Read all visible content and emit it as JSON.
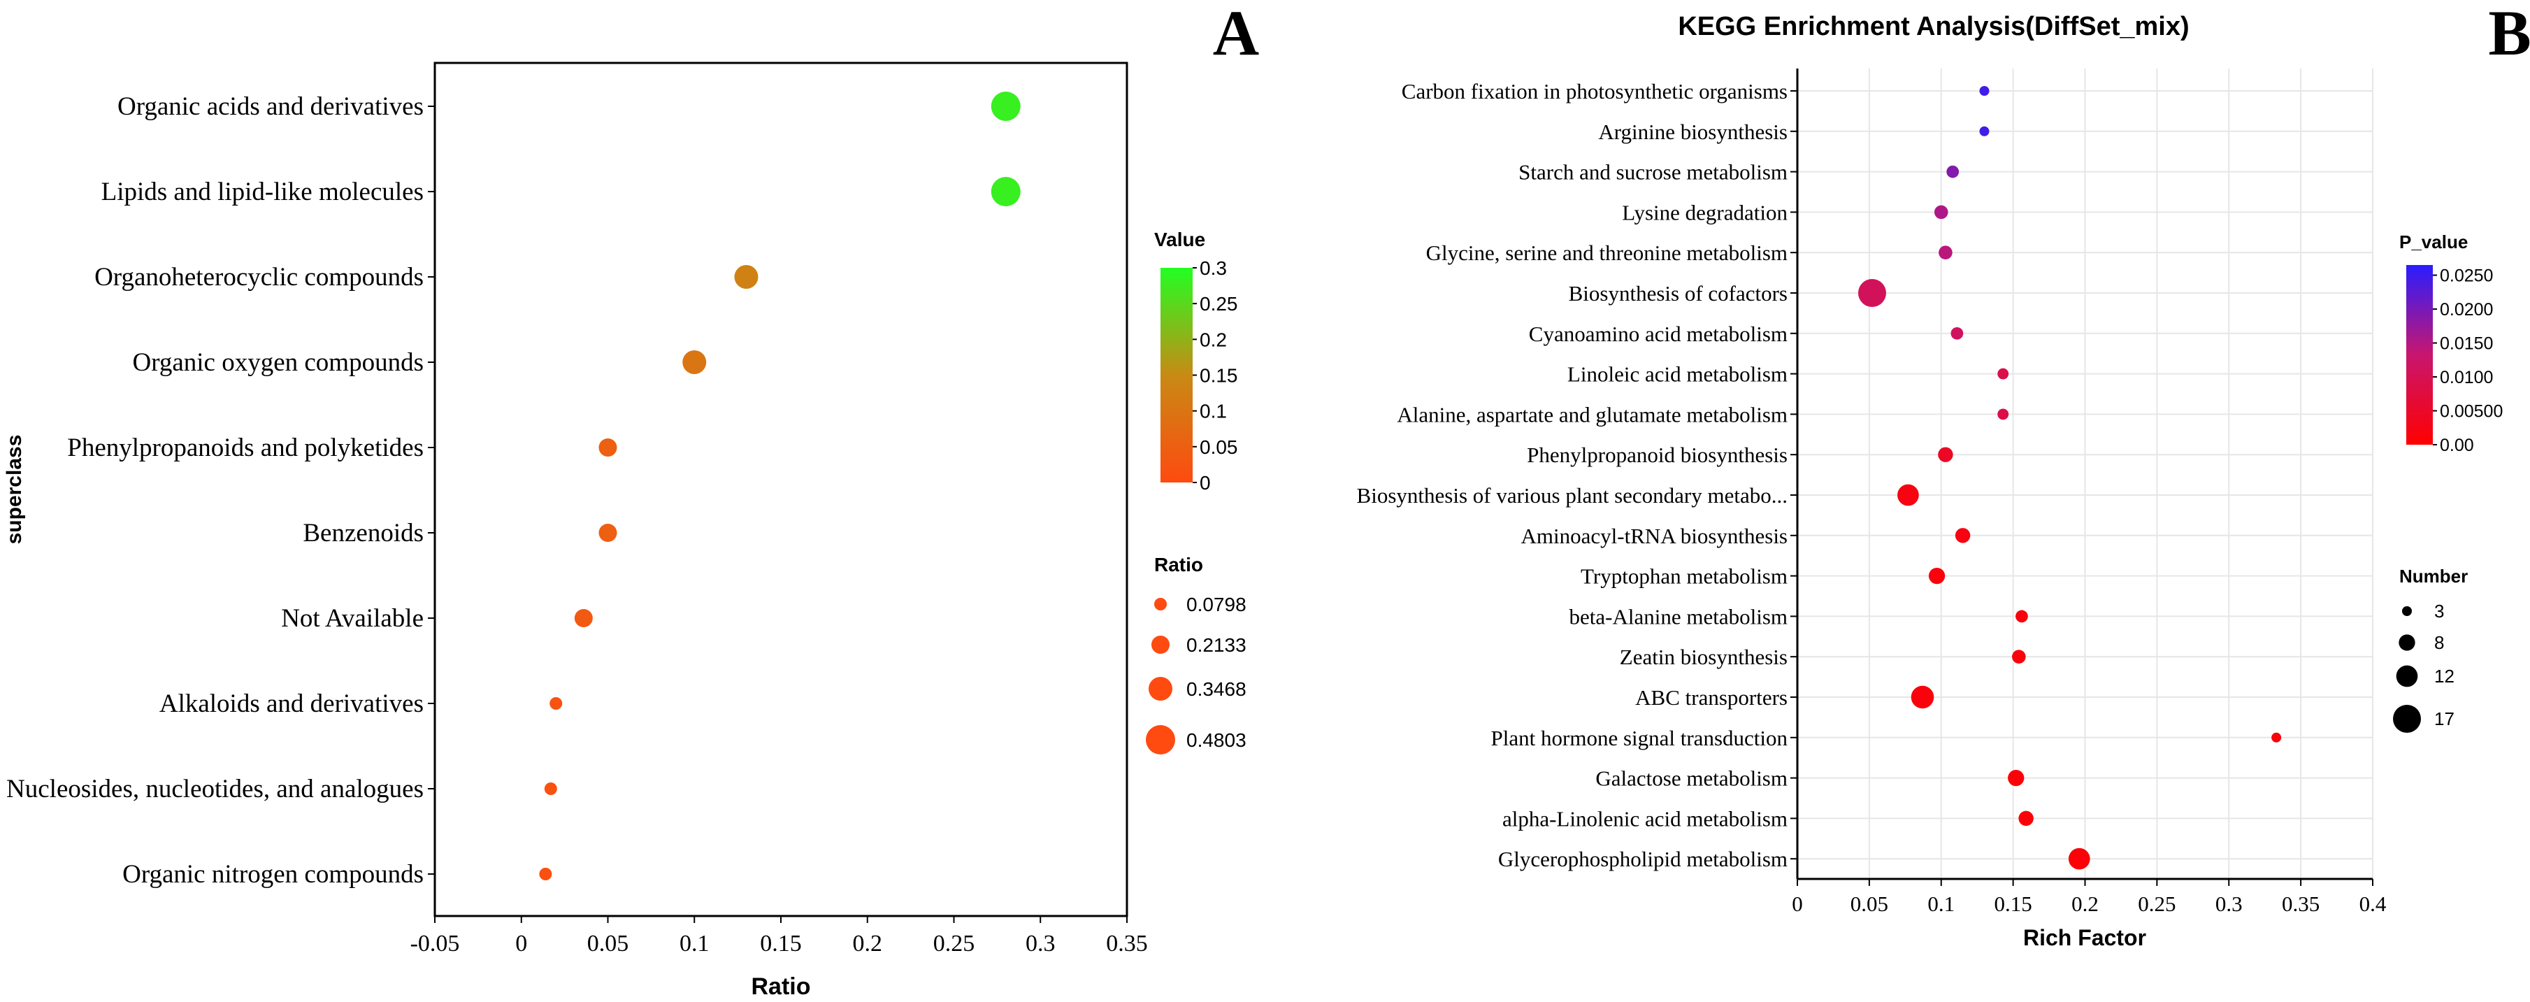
{
  "chart_data": [
    {
      "panel_letter": "A",
      "type": "scatter",
      "title": "",
      "xlabel": "Ratio",
      "ylabel": "superclass",
      "xlim": [
        -0.05,
        0.35
      ],
      "xticks": [
        -0.05,
        0,
        0.05,
        0.1,
        0.15,
        0.2,
        0.25,
        0.3,
        0.35
      ],
      "xtick_labels": [
        "-0.05",
        "0",
        "0.05",
        "0.1",
        "0.15",
        "0.2",
        "0.25",
        "0.3",
        "0.35"
      ],
      "grid": false,
      "categories": [
        "Organic acids and derivatives",
        "Lipids and lipid-like molecules",
        "Organoheterocyclic compounds",
        "Organic oxygen compounds",
        "Phenylpropanoids and polyketides",
        "Benzenoids",
        "Not Available",
        "Alkaloids and derivatives",
        "Nucleosides, nucleotides, and analogues",
        "Organic nitrogen compounds"
      ],
      "x": [
        0.28,
        0.28,
        0.13,
        0.1,
        0.05,
        0.05,
        0.036,
        0.02,
        0.017,
        0.014
      ],
      "color_value": [
        0.28,
        0.28,
        0.13,
        0.1,
        0.05,
        0.05,
        0.036,
        0.02,
        0.017,
        0.014
      ],
      "size_value": [
        0.4803,
        0.4803,
        0.3468,
        0.3468,
        0.2133,
        0.2133,
        0.2133,
        0.0798,
        0.0798,
        0.0798
      ],
      "color_legend": {
        "title": "Value",
        "range": [
          0,
          0.3
        ],
        "tick_labels": [
          "0.3",
          "0.25",
          "0.2",
          "0.15",
          "0.1",
          "0.05",
          "0"
        ],
        "colors": [
          "#ff4a10",
          "#c88a14",
          "#22ff22"
        ]
      },
      "size_legend": {
        "title": "Ratio",
        "labels": [
          "0.0798",
          "0.2133",
          "0.3468",
          "0.4803"
        ],
        "values": [
          0.0798,
          0.2133,
          0.3468,
          0.4803
        ],
        "color": "#ff4a10"
      }
    },
    {
      "panel_letter": "B",
      "type": "scatter",
      "title": "KEGG Enrichment Analysis(DiffSet_mix)",
      "xlabel": "Rich Factor",
      "ylabel": "",
      "xlim": [
        0,
        0.4
      ],
      "xticks": [
        0,
        0.05,
        0.1,
        0.15,
        0.2,
        0.25,
        0.3,
        0.35,
        0.4
      ],
      "xtick_labels": [
        "0",
        "0.05",
        "0.1",
        "0.15",
        "0.2",
        "0.25",
        "0.3",
        "0.35",
        "0.4"
      ],
      "grid": true,
      "categories": [
        "Carbon fixation in photosynthetic organisms",
        "Arginine biosynthesis",
        "Starch and sucrose metabolism",
        "Lysine degradation",
        "Glycine, serine and threonine metabolism",
        "Biosynthesis of cofactors",
        "Cyanoamino acid metabolism",
        "Linoleic acid metabolism",
        "Alanine, aspartate and glutamate metabolism",
        "Phenylpropanoid biosynthesis",
        "Biosynthesis of various plant secondary metabo...",
        "Aminoacyl-tRNA biosynthesis",
        "Tryptophan metabolism",
        "beta-Alanine metabolism",
        "Zeatin biosynthesis",
        "ABC transporters",
        "Plant hormone signal transduction",
        "Galactose metabolism",
        "alpha-Linolenic acid metabolism",
        "Glycerophospholipid metabolism"
      ],
      "x": [
        0.13,
        0.13,
        0.108,
        0.1,
        0.103,
        0.052,
        0.111,
        0.143,
        0.143,
        0.103,
        0.077,
        0.115,
        0.097,
        0.156,
        0.154,
        0.087,
        0.333,
        0.152,
        0.159,
        0.196
      ],
      "p_value": [
        0.0245,
        0.0245,
        0.019,
        0.0155,
        0.0145,
        0.011,
        0.0115,
        0.009,
        0.0085,
        0.0045,
        0.002,
        0.002,
        0.0015,
        0.0015,
        0.0015,
        0.0015,
        0.001,
        0.001,
        0.0008,
        0.0008
      ],
      "number": [
        3,
        3,
        5,
        6,
        6,
        17,
        5,
        4,
        4,
        7,
        12,
        7,
        8,
        5,
        6,
        13,
        3,
        8,
        7,
        12
      ],
      "color_legend": {
        "title": "P_value",
        "range": [
          0,
          0.0265
        ],
        "ticks": [
          0.025,
          0.02,
          0.015,
          0.01,
          0.005,
          0
        ],
        "tick_labels": [
          "0.0250",
          "0.0200",
          "0.0150",
          "0.0100",
          "0.00500",
          "0.00"
        ],
        "colors": [
          "#ff0000",
          "#c8166e",
          "#2a1dff"
        ]
      },
      "size_legend": {
        "title": "Number",
        "labels": [
          "3",
          "8",
          "12",
          "17"
        ],
        "values": [
          3,
          8,
          12,
          17
        ],
        "color": "#000000"
      }
    }
  ]
}
